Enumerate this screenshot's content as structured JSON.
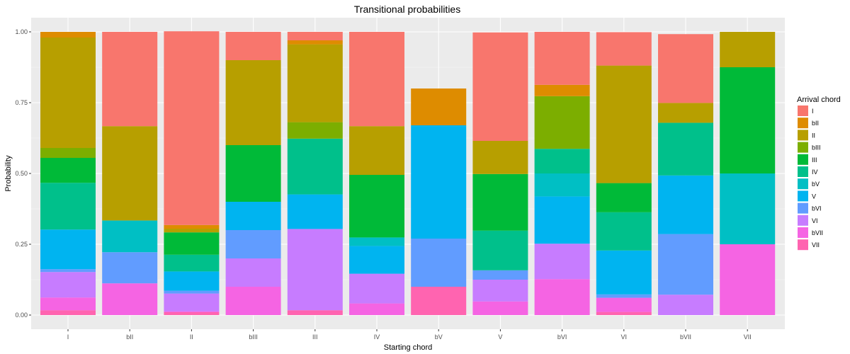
{
  "chart_data": {
    "type": "bar",
    "stacked": true,
    "title": "Transitional probabilities",
    "xlabel": "Starting chord",
    "ylabel": "Probability",
    "ylim": [
      0,
      1
    ],
    "yticks": [
      "0.00",
      "0.25",
      "0.50",
      "0.75",
      "1.00"
    ],
    "grid": true,
    "legend_position": "right",
    "legend_title": "Arrival chord",
    "categories": [
      "I",
      "bII",
      "II",
      "bIII",
      "III",
      "IV",
      "bV",
      "V",
      "bVI",
      "VI",
      "bVII",
      "VII"
    ],
    "series": [
      {
        "name": "I",
        "color": "#F8766D",
        "values": [
          0.0,
          0.333,
          0.684,
          0.1,
          0.03,
          0.333,
          0.0,
          0.383,
          0.187,
          0.118,
          0.243,
          0.0
        ]
      },
      {
        "name": "bII",
        "color": "#DE8C00",
        "values": [
          0.02,
          0.0,
          0.013,
          0.0,
          0.014,
          0.0,
          0.13,
          0.0,
          0.04,
          0.0,
          0.0,
          0.0
        ]
      },
      {
        "name": "II",
        "color": "#B79F00",
        "values": [
          0.39,
          0.333,
          0.013,
          0.3,
          0.275,
          0.172,
          0.0,
          0.117,
          0.0,
          0.415,
          0.07,
          0.125
        ]
      },
      {
        "name": "bIII",
        "color": "#7CAE00",
        "values": [
          0.035,
          0.0,
          0.0,
          0.0,
          0.058,
          0.0,
          0.0,
          0.0,
          0.186,
          0.0,
          0.0,
          0.0
        ]
      },
      {
        "name": "III",
        "color": "#00BA38",
        "values": [
          0.088,
          0.0,
          0.079,
          0.2,
          0.0,
          0.221,
          0.0,
          0.2,
          0.0,
          0.103,
          0.0,
          0.375
        ]
      },
      {
        "name": "IV",
        "color": "#00C08B",
        "values": [
          0.165,
          0.0,
          0.059,
          0.0,
          0.197,
          0.0,
          0.0,
          0.14,
          0.087,
          0.135,
          0.186,
          0.0
        ]
      },
      {
        "name": "bV",
        "color": "#00BFC4",
        "values": [
          0.0,
          0.112,
          0.0,
          0.0,
          0.0,
          0.03,
          0.0,
          0.0,
          0.081,
          0.0,
          0.0,
          0.25
        ]
      },
      {
        "name": "V",
        "color": "#00B4F0",
        "values": [
          0.14,
          0.0,
          0.068,
          0.1,
          0.122,
          0.098,
          0.4,
          0.0,
          0.167,
          0.155,
          0.207,
          0.0
        ]
      },
      {
        "name": "bVI",
        "color": "#619CFF",
        "values": [
          0.01,
          0.11,
          0.01,
          0.1,
          0.0,
          0.0,
          0.17,
          0.033,
          0.0,
          0.012,
          0.214,
          0.0
        ]
      },
      {
        "name": "VI",
        "color": "#C77CFF",
        "values": [
          0.09,
          0.0,
          0.063,
          0.1,
          0.287,
          0.105,
          0.0,
          0.077,
          0.125,
          0.0,
          0.072,
          0.0
        ]
      },
      {
        "name": "bVII",
        "color": "#F564E3",
        "values": [
          0.045,
          0.112,
          0.003,
          0.1,
          0.0,
          0.041,
          0.0,
          0.048,
          0.127,
          0.05,
          0.0,
          0.25
        ]
      },
      {
        "name": "VII",
        "color": "#FF64B0",
        "values": [
          0.017,
          0.0,
          0.01,
          0.0,
          0.017,
          0.0,
          0.1,
          0.0,
          0.0,
          0.011,
          0.0,
          0.0
        ]
      }
    ]
  }
}
